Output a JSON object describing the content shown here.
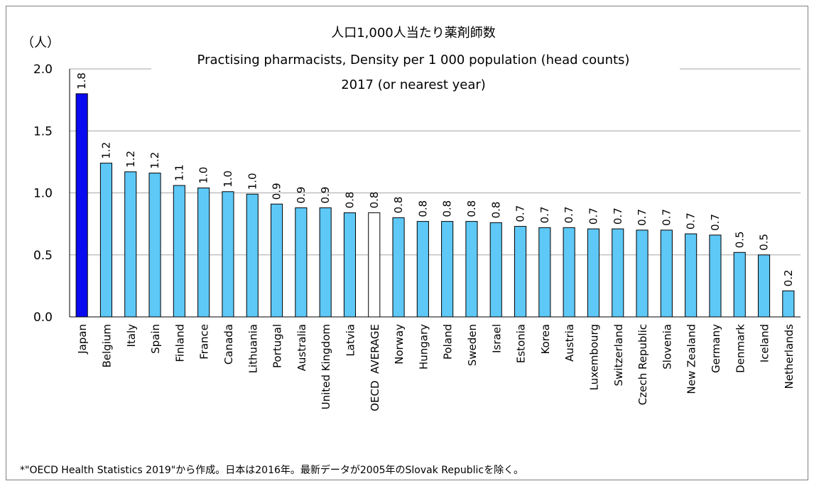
{
  "chart_data": {
    "type": "bar",
    "title": "人口1,000人当たり薬剤師数",
    "subtitle": "Practising pharmacists, Density per 1 000 population (head counts)",
    "subtitle2": "2017 (or nearest year)",
    "y_axis_label": "（人）",
    "footnote": "*\"OECD Health Statistics 2019\"から作成。日本は2016年。最新データが2005年のSlovak Republicを除く。",
    "categories": [
      "Japan",
      "Belgium",
      "Italy",
      "Spain",
      "Finland",
      "France",
      "Canada",
      "Lithuania",
      "Portugal",
      "Australia",
      "United Kingdom",
      "Latvia",
      "OECD  AVERAGE",
      "Norway",
      "Hungary",
      "Poland",
      "Sweden",
      "Israel",
      "Estonia",
      "Korea",
      "Austria",
      "Luxembourg",
      "Switzerland",
      "Czech Republic",
      "Slovenia",
      "New Zealand",
      "Germany",
      "Denmark",
      "Iceland",
      "Netherlands"
    ],
    "values": [
      1.8,
      1.24,
      1.17,
      1.16,
      1.06,
      1.04,
      1.01,
      0.99,
      0.91,
      0.88,
      0.88,
      0.84,
      0.84,
      0.8,
      0.77,
      0.77,
      0.77,
      0.76,
      0.73,
      0.72,
      0.72,
      0.71,
      0.71,
      0.7,
      0.7,
      0.67,
      0.66,
      0.52,
      0.5,
      0.21
    ],
    "value_labels": [
      "1.8",
      "1.2",
      "1.2",
      "1.2",
      "1.1",
      "1.0",
      "1.0",
      "1.0",
      "0.9",
      "0.9",
      "0.9",
      "0.8",
      "0.8",
      "0.8",
      "0.8",
      "0.8",
      "0.8",
      "0.8",
      "0.7",
      "0.7",
      "0.7",
      "0.7",
      "0.7",
      "0.7",
      "0.7",
      "0.7",
      "0.7",
      "0.5",
      "0.5",
      "0.2"
    ],
    "colors": [
      "#0a0af0",
      "#5ec8f7",
      "#5ec8f7",
      "#5ec8f7",
      "#5ec8f7",
      "#5ec8f7",
      "#5ec8f7",
      "#5ec8f7",
      "#5ec8f7",
      "#5ec8f7",
      "#5ec8f7",
      "#5ec8f7",
      "#ffffff",
      "#5ec8f7",
      "#5ec8f7",
      "#5ec8f7",
      "#5ec8f7",
      "#5ec8f7",
      "#5ec8f7",
      "#5ec8f7",
      "#5ec8f7",
      "#5ec8f7",
      "#5ec8f7",
      "#5ec8f7",
      "#5ec8f7",
      "#5ec8f7",
      "#5ec8f7",
      "#5ec8f7",
      "#5ec8f7",
      "#5ec8f7"
    ],
    "ylim": [
      0,
      2
    ],
    "yticks": [
      {
        "value": 0,
        "label": "0.0"
      },
      {
        "value": 0.5,
        "label": "0.5"
      },
      {
        "value": 1,
        "label": "1.0"
      },
      {
        "value": 1.5,
        "label": "1.5"
      },
      {
        "value": 2,
        "label": "2.0"
      }
    ],
    "grid": true
  }
}
